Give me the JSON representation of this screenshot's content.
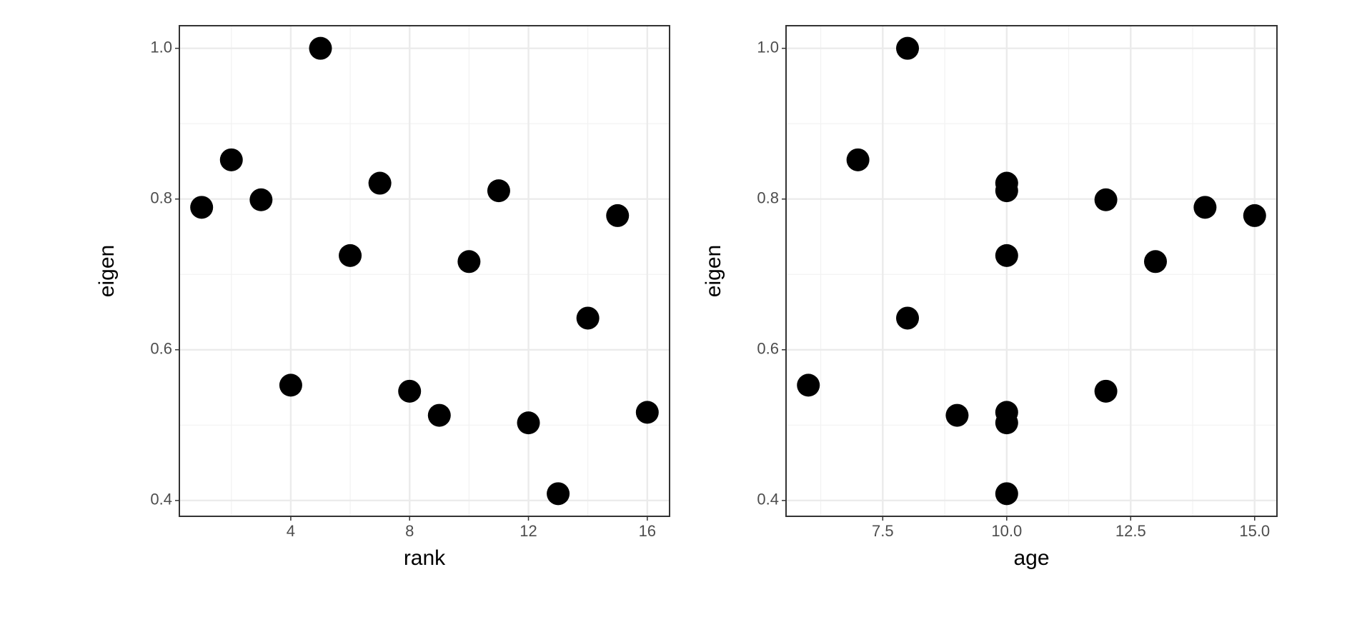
{
  "chart_data": [
    {
      "type": "scatter",
      "xlabel": "rank",
      "ylabel": "eigen",
      "color": "#000000",
      "x": [
        1,
        2,
        3,
        4,
        5,
        6,
        7,
        8,
        9,
        10,
        11,
        12,
        13,
        14,
        15,
        16
      ],
      "values": [
        0.789,
        0.852,
        0.799,
        0.553,
        1.0,
        0.725,
        0.821,
        0.545,
        0.513,
        0.717,
        0.811,
        0.503,
        0.409,
        0.642,
        0.778,
        0.517
      ],
      "xlim": [
        0.25,
        16.75
      ],
      "ylim": [
        0.379,
        1.03
      ],
      "xticks": [
        4,
        8,
        12,
        16
      ],
      "yticks": [
        0.4,
        0.6,
        0.8,
        {
          "value": 1,
          "label": "1.0"
        }
      ],
      "grid": true,
      "minor_grid": true
    },
    {
      "type": "scatter",
      "xlabel": "age",
      "ylabel": "eigen",
      "color": "#000000",
      "x": [
        14,
        7,
        12,
        6,
        8,
        10,
        10,
        12,
        9,
        13,
        10,
        10,
        10,
        8,
        15,
        10
      ],
      "values": [
        0.789,
        0.852,
        0.799,
        0.553,
        1.0,
        0.725,
        0.821,
        0.545,
        0.513,
        0.717,
        0.811,
        0.503,
        0.409,
        0.642,
        0.778,
        0.517
      ],
      "xlim": [
        5.55,
        15.45
      ],
      "ylim": [
        0.379,
        1.03
      ],
      "xticks": [
        7.5,
        {
          "value": 10,
          "label": "10.0"
        },
        12.5,
        {
          "value": 15,
          "label": "15.0"
        }
      ],
      "yticks": [
        0.4,
        0.6,
        0.8,
        {
          "value": 1,
          "label": "1.0"
        }
      ],
      "grid": true,
      "minor_grid": true
    }
  ]
}
